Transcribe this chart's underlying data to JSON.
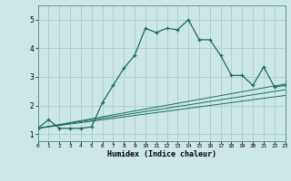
{
  "title": "",
  "xlabel": "Humidex (Indice chaleur)",
  "ylabel": "",
  "background_color": "#cce8e6",
  "grid_color": "#aaccca",
  "line_color": "#1a6b5e",
  "xlim": [
    0,
    23
  ],
  "ylim": [
    0.75,
    5.5
  ],
  "yticks": [
    1,
    2,
    3,
    4,
    5
  ],
  "xticks": [
    0,
    1,
    2,
    3,
    4,
    5,
    6,
    7,
    8,
    9,
    10,
    11,
    12,
    13,
    14,
    15,
    16,
    17,
    18,
    19,
    20,
    21,
    22,
    23
  ],
  "series_main": {
    "x": [
      0,
      1,
      2,
      3,
      4,
      5,
      6,
      7,
      8,
      9,
      10,
      11,
      12,
      13,
      14,
      15,
      16,
      17,
      18,
      19,
      20,
      21,
      22,
      23
    ],
    "y": [
      1.2,
      1.5,
      1.2,
      1.2,
      1.2,
      1.25,
      2.1,
      2.7,
      3.3,
      3.75,
      4.7,
      4.55,
      4.7,
      4.65,
      5.0,
      4.3,
      4.3,
      3.75,
      3.05,
      3.05,
      2.7,
      3.35,
      2.65,
      2.7
    ]
  },
  "series_linear1": {
    "x": [
      0,
      23
    ],
    "y": [
      1.2,
      2.75
    ]
  },
  "series_linear2": {
    "x": [
      0,
      23
    ],
    "y": [
      1.2,
      2.55
    ]
  },
  "series_linear3": {
    "x": [
      0,
      23
    ],
    "y": [
      1.2,
      2.35
    ]
  }
}
